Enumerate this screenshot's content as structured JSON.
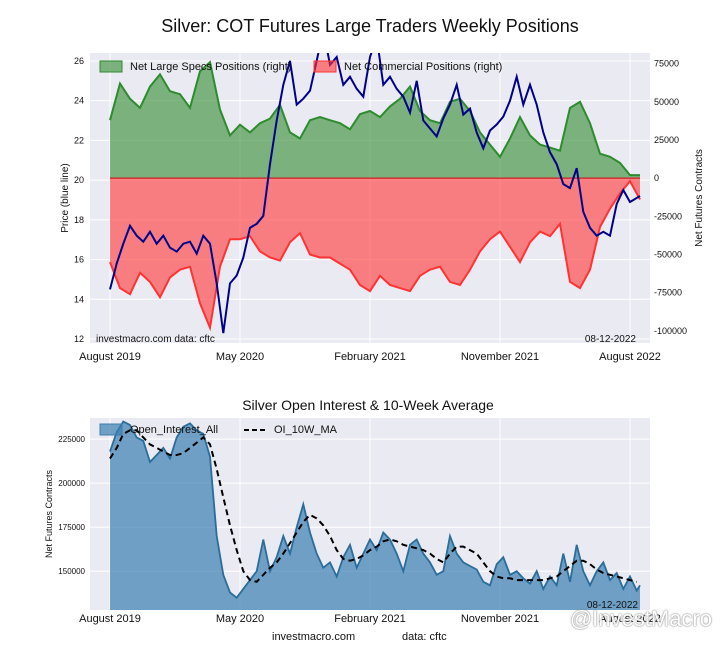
{
  "footer": {
    "site": "investmacro.com",
    "data_label": "data: cftc"
  },
  "watermark": "@InvestMacro",
  "colors": {
    "background": "#eaeaf2",
    "grid": "#ffffff",
    "price": "#00008b",
    "specs": "#2e8b2e",
    "commercial": "#ff3333",
    "oi": "#3a7fb0",
    "ma": "#000000"
  },
  "chart_data": [
    {
      "type": "area",
      "title": "Silver: COT Futures Large Traders Weekly Positions",
      "ylabel": "Price (blue line)",
      "y2label": "Net Futures Contracts",
      "ylim": [
        11.8,
        26.4
      ],
      "y2lim": [
        -108000,
        82000
      ],
      "yticks": [
        12,
        14,
        16,
        18,
        20,
        22,
        24,
        26
      ],
      "y2ticks": [
        -100000,
        -75000,
        -50000,
        -25000,
        0,
        25000,
        50000,
        75000
      ],
      "x_tick_labels": [
        "August 2019",
        "May 2020",
        "February 2021",
        "November 2021",
        "August 2022"
      ],
      "x_tick_positions": [
        0,
        39,
        78,
        117,
        156
      ],
      "xlim": [
        -6,
        162
      ],
      "grid": true,
      "legend_position": "top",
      "site_note": "investmacro.com    data: cftc",
      "date_note": "08-12-2022",
      "legend": [
        "Net Large Specs Positions (right)",
        "Net Commercial Positions (right)"
      ],
      "series": [
        {
          "name": "Net Large Specs Positions (right)",
          "axis": "right",
          "x": [
            0,
            3,
            6,
            9,
            12,
            15,
            18,
            21,
            24,
            27,
            30,
            33,
            36,
            39,
            42,
            45,
            48,
            51,
            54,
            57,
            60,
            63,
            66,
            69,
            72,
            75,
            78,
            81,
            84,
            87,
            90,
            93,
            96,
            99,
            102,
            105,
            108,
            111,
            114,
            117,
            120,
            123,
            126,
            129,
            132,
            135,
            138,
            141,
            144,
            147,
            150,
            153,
            156,
            159
          ],
          "values": [
            38000,
            62000,
            52000,
            46000,
            60000,
            68000,
            57000,
            55000,
            46000,
            70000,
            76000,
            45000,
            28000,
            35000,
            30000,
            36000,
            39000,
            48000,
            30000,
            26000,
            38000,
            40000,
            38000,
            36000,
            32000,
            42000,
            44000,
            40000,
            47000,
            52000,
            60000,
            44000,
            38000,
            36000,
            50000,
            52000,
            44000,
            30000,
            22000,
            14000,
            26000,
            40000,
            28000,
            22000,
            20000,
            18000,
            46000,
            50000,
            36000,
            16000,
            14000,
            10000,
            2000,
            2000
          ]
        },
        {
          "name": "Net Commercial Positions (right)",
          "axis": "right",
          "x": [
            0,
            3,
            6,
            9,
            12,
            15,
            18,
            21,
            24,
            27,
            30,
            33,
            36,
            39,
            42,
            45,
            48,
            51,
            54,
            57,
            60,
            63,
            66,
            69,
            72,
            75,
            78,
            81,
            84,
            87,
            90,
            93,
            96,
            99,
            102,
            105,
            108,
            111,
            114,
            117,
            120,
            123,
            126,
            129,
            132,
            135,
            138,
            141,
            144,
            147,
            150,
            153,
            156,
            159
          ],
          "values": [
            -55000,
            -72000,
            -76000,
            -62000,
            -68000,
            -78000,
            -65000,
            -60000,
            -58000,
            -82000,
            -98000,
            -58000,
            -40000,
            -40000,
            -38000,
            -48000,
            -52000,
            -54000,
            -42000,
            -36000,
            -50000,
            -52000,
            -52000,
            -56000,
            -60000,
            -70000,
            -74000,
            -64000,
            -70000,
            -72000,
            -74000,
            -64000,
            -60000,
            -58000,
            -68000,
            -70000,
            -60000,
            -48000,
            -40000,
            -35000,
            -45000,
            -55000,
            -42000,
            -35000,
            -38000,
            -30000,
            -68000,
            -72000,
            -60000,
            -32000,
            -20000,
            -10000,
            -2000,
            -14000
          ]
        },
        {
          "name": "Price (blue line)",
          "axis": "left",
          "x": [
            0,
            2,
            4,
            6,
            8,
            10,
            12,
            14,
            16,
            18,
            20,
            22,
            24,
            26,
            28,
            30,
            32,
            34,
            36,
            38,
            40,
            42,
            44,
            46,
            48,
            50,
            52,
            54,
            56,
            58,
            60,
            62,
            64,
            66,
            68,
            70,
            72,
            74,
            76,
            78,
            80,
            82,
            84,
            86,
            88,
            90,
            92,
            94,
            96,
            98,
            100,
            102,
            104,
            106,
            108,
            110,
            112,
            114,
            116,
            118,
            120,
            122,
            124,
            126,
            128,
            130,
            132,
            134,
            136,
            138,
            140,
            142,
            144,
            146,
            148,
            150,
            152,
            154,
            156,
            159
          ],
          "values": [
            14.5,
            15.8,
            16.8,
            17.7,
            17.2,
            16.9,
            17.4,
            16.8,
            17.2,
            16.6,
            16.4,
            16.8,
            16.9,
            16.3,
            17.2,
            16.8,
            14.8,
            12.3,
            14.8,
            15.2,
            16.1,
            17.6,
            17.8,
            18.2,
            20.8,
            23.0,
            24.8,
            26.0,
            23.8,
            24.1,
            24.5,
            26.0,
            27.6,
            25.8,
            26.2,
            24.8,
            25.2,
            24.6,
            24.2,
            26.2,
            27.2,
            24.8,
            25.2,
            24.6,
            24.2,
            23.4,
            25.0,
            23.0,
            22.6,
            22.2,
            23.1,
            23.8,
            24.8,
            23.3,
            23.6,
            22.4,
            21.6,
            22.5,
            22.8,
            23.2,
            24.0,
            25.2,
            23.8,
            24.8,
            23.8,
            22.4,
            21.4,
            20.8,
            19.8,
            19.6,
            20.6,
            18.4,
            17.6,
            17.2,
            17.4,
            17.2,
            18.8,
            19.5,
            18.9,
            19.2
          ]
        }
      ]
    },
    {
      "type": "area",
      "title": "Silver Open Interest & 10-Week Average",
      "ylabel": "Net Futures Contracts",
      "ylim": [
        128000,
        237000
      ],
      "yticks": [
        150000,
        175000,
        200000,
        225000
      ],
      "x_tick_labels": [
        "August 2019",
        "May 2020",
        "February 2021",
        "November 2021",
        "August 2022"
      ],
      "x_tick_positions": [
        0,
        39,
        78,
        117,
        156
      ],
      "xlim": [
        -6,
        162
      ],
      "grid": true,
      "legend_position": "top-left",
      "date_note": "08-12-2022",
      "legend": [
        "Open_Interest_All",
        "OI_10W_MA"
      ],
      "series": [
        {
          "name": "Open_Interest_All",
          "x": [
            0,
            2,
            4,
            6,
            8,
            10,
            12,
            14,
            16,
            18,
            20,
            22,
            24,
            26,
            28,
            30,
            32,
            34,
            36,
            38,
            40,
            42,
            44,
            46,
            48,
            50,
            52,
            54,
            56,
            58,
            60,
            62,
            64,
            66,
            68,
            70,
            72,
            74,
            76,
            78,
            80,
            82,
            84,
            86,
            88,
            90,
            92,
            94,
            96,
            98,
            100,
            102,
            104,
            106,
            108,
            110,
            112,
            114,
            116,
            118,
            120,
            122,
            124,
            126,
            128,
            130,
            132,
            134,
            136,
            138,
            140,
            142,
            144,
            146,
            148,
            150,
            152,
            154,
            156,
            158,
            159
          ],
          "values": [
            218000,
            229000,
            235000,
            233000,
            226000,
            224000,
            212000,
            216000,
            220000,
            214000,
            226000,
            232000,
            234000,
            230000,
            228000,
            215000,
            170000,
            148000,
            138000,
            135000,
            140000,
            145000,
            150000,
            168000,
            150000,
            158000,
            170000,
            160000,
            175000,
            188000,
            172000,
            160000,
            152000,
            155000,
            147000,
            158000,
            165000,
            152000,
            160000,
            168000,
            162000,
            172000,
            168000,
            160000,
            150000,
            165000,
            168000,
            160000,
            155000,
            148000,
            150000,
            170000,
            160000,
            155000,
            153000,
            151000,
            144000,
            142000,
            154000,
            158000,
            148000,
            150000,
            146000,
            143000,
            150000,
            140000,
            147000,
            142000,
            160000,
            144000,
            165000,
            150000,
            142000,
            150000,
            155000,
            145000,
            149000,
            140000,
            147000,
            139000,
            142000
          ]
        },
        {
          "name": "OI_10W_MA",
          "x": [
            0,
            2,
            4,
            6,
            8,
            10,
            12,
            14,
            16,
            18,
            20,
            22,
            24,
            26,
            28,
            30,
            32,
            34,
            36,
            38,
            40,
            42,
            44,
            46,
            48,
            50,
            52,
            54,
            56,
            58,
            60,
            62,
            64,
            66,
            68,
            70,
            72,
            74,
            76,
            78,
            80,
            82,
            84,
            86,
            88,
            90,
            92,
            94,
            96,
            98,
            100,
            102,
            104,
            106,
            108,
            110,
            112,
            114,
            116,
            118,
            120,
            122,
            124,
            126,
            128,
            130,
            132,
            134,
            136,
            138,
            140,
            142,
            144,
            146,
            148,
            150,
            152,
            154,
            156,
            158
          ],
          "values": [
            214000,
            220000,
            228000,
            230000,
            230000,
            226000,
            222000,
            220000,
            218000,
            216000,
            216000,
            217000,
            220000,
            223000,
            226000,
            222000,
            208000,
            192000,
            176000,
            162000,
            150000,
            145000,
            144000,
            148000,
            152000,
            155000,
            160000,
            166000,
            172000,
            178000,
            182000,
            180000,
            176000,
            170000,
            162000,
            157000,
            156000,
            157000,
            159000,
            162000,
            164000,
            167000,
            168000,
            167000,
            165000,
            164000,
            163000,
            162000,
            160000,
            157000,
            155000,
            160000,
            164000,
            164000,
            162000,
            160000,
            155000,
            150000,
            147000,
            146000,
            146000,
            145000,
            145000,
            145000,
            145000,
            145000,
            146000,
            147000,
            150000,
            153000,
            156000,
            156000,
            154000,
            151000,
            149000,
            148000,
            147000,
            146000,
            145000,
            144000
          ]
        }
      ]
    }
  ]
}
